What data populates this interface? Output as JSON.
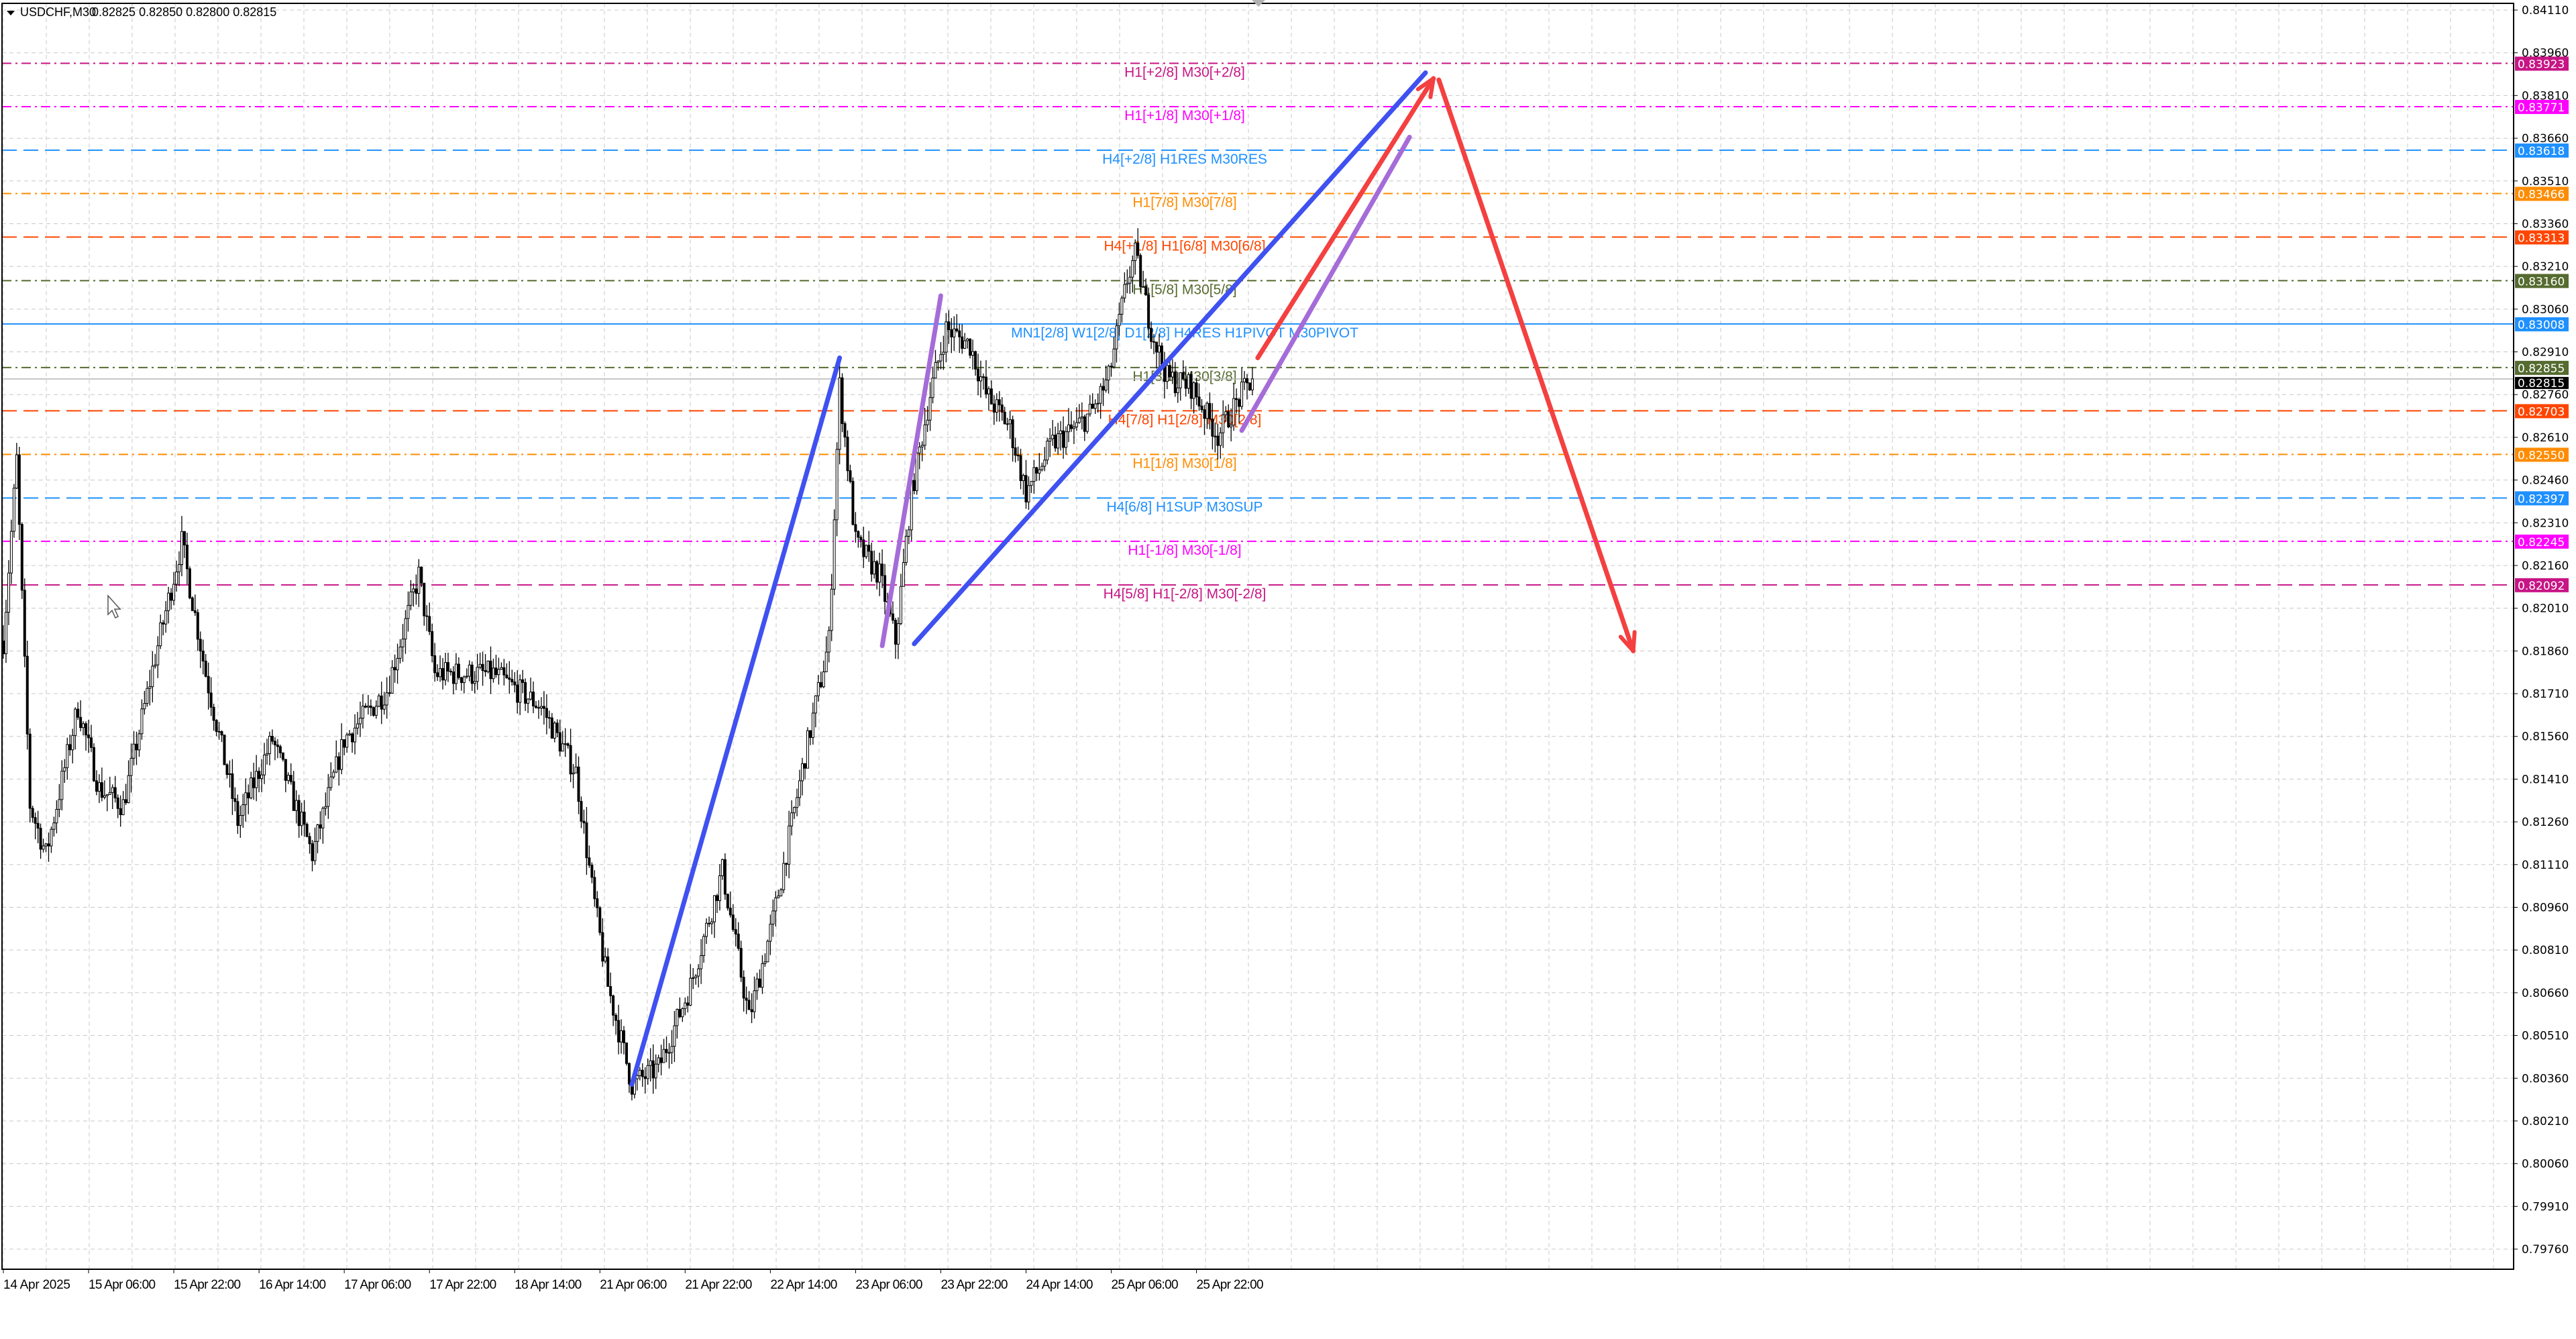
{
  "header": {
    "symbol": "USDCHF,M30",
    "ohlc": "0.82825 0.82850 0.82800 0.82815"
  },
  "chart_data": {
    "type": "candlestick",
    "symbol": "USDCHF",
    "timeframe": "M30",
    "grid": true,
    "ylim": [
      0.7976,
      0.8411
    ],
    "y_ticks": [
      "0.84110",
      "0.83960",
      "0.83810",
      "0.83660",
      "0.83510",
      "0.83360",
      "0.83210",
      "0.83060",
      "0.82910",
      "0.82760",
      "0.82610",
      "0.82460",
      "0.82310",
      "0.82160",
      "0.82010",
      "0.81860",
      "0.81710",
      "0.81560",
      "0.81410",
      "0.81260",
      "0.81110",
      "0.80960",
      "0.80810",
      "0.80660",
      "0.80510",
      "0.80360",
      "0.80210",
      "0.80060",
      "0.79910",
      "0.79760"
    ],
    "x_ticks": [
      "14 Apr 2025",
      "15 Apr 06:00",
      "15 Apr 22:00",
      "16 Apr 14:00",
      "17 Apr 06:00",
      "17 Apr 22:00",
      "18 Apr 14:00",
      "21 Apr 06:00",
      "21 Apr 22:00",
      "22 Apr 14:00",
      "23 Apr 06:00",
      "23 Apr 22:00",
      "24 Apr 14:00",
      "25 Apr 06:00",
      "25 Apr 22:00"
    ],
    "bars_per_x_tick": 32,
    "current_price": {
      "value": 0.82815,
      "label": "0.82815",
      "color": "#000000"
    },
    "close_path": [
      [
        0,
        0.81895
      ],
      [
        5,
        0.8253
      ],
      [
        10,
        0.81319
      ],
      [
        16,
        0.81146
      ],
      [
        28,
        0.81665
      ],
      [
        36,
        0.81376
      ],
      [
        45,
        0.81319
      ],
      [
        57,
        0.81838
      ],
      [
        67,
        0.82242
      ],
      [
        76,
        0.8178
      ],
      [
        88,
        0.81261
      ],
      [
        101,
        0.81549
      ],
      [
        116,
        0.81146
      ],
      [
        128,
        0.81549
      ],
      [
        144,
        0.81722
      ],
      [
        156,
        0.82126
      ],
      [
        162,
        0.8178
      ],
      [
        184,
        0.8178
      ],
      [
        202,
        0.81665
      ],
      [
        215,
        0.81434
      ],
      [
        221,
        0.8103
      ],
      [
        227,
        0.80684
      ],
      [
        236,
        0.80338
      ],
      [
        246,
        0.80396
      ],
      [
        258,
        0.80684
      ],
      [
        270,
        0.81088
      ],
      [
        280,
        0.80569
      ],
      [
        289,
        0.80915
      ],
      [
        301,
        0.81492
      ],
      [
        310,
        0.81895
      ],
      [
        314,
        0.8279
      ],
      [
        320,
        0.82242
      ],
      [
        329,
        0.82126
      ],
      [
        335,
        0.81895
      ],
      [
        341,
        0.82415
      ],
      [
        348,
        0.82761
      ],
      [
        354,
        0.82991
      ],
      [
        363,
        0.82934
      ],
      [
        369,
        0.82761
      ],
      [
        378,
        0.82645
      ],
      [
        384,
        0.82415
      ],
      [
        394,
        0.82588
      ],
      [
        403,
        0.82645
      ],
      [
        409,
        0.82703
      ],
      [
        415,
        0.82818
      ],
      [
        422,
        0.83164
      ],
      [
        425,
        0.83251
      ],
      [
        431,
        0.82991
      ],
      [
        437,
        0.82818
      ],
      [
        446,
        0.8279
      ],
      [
        456,
        0.82617
      ],
      [
        465,
        0.82761
      ],
      [
        469,
        0.82815
      ]
    ],
    "levels": [
      {
        "price": 0.83923,
        "label": "0.83923",
        "text": "H1[+2/8] M30[+2/8]",
        "color": "#c71585",
        "style": "dashdot"
      },
      {
        "price": 0.83771,
        "label": "0.83771",
        "text": "H1[+1/8] M30[+1/8]",
        "color": "#ff00ff",
        "style": "dashdot"
      },
      {
        "price": 0.83618,
        "label": "0.83618",
        "text": "H4[+2/8] H1RES M30RES",
        "color": "#1e90ff",
        "style": "dashed"
      },
      {
        "price": 0.83466,
        "label": "0.83466",
        "text": "H1[7/8] M30[7/8]",
        "color": "#ff8c00",
        "style": "dashdot"
      },
      {
        "price": 0.83313,
        "label": "0.83313",
        "text": "H4[+1/8] H1[6/8] M30[6/8]",
        "color": "#ff4500",
        "style": "dashed"
      },
      {
        "price": 0.8316,
        "label": "0.83160",
        "text": "H1[5/8] M30[5/8]",
        "color": "#556b2f",
        "style": "dashdot"
      },
      {
        "price": 0.83008,
        "label": "0.83008",
        "text": "MN1[2/8] W1[2/8] D1[2/8] H4RES H1PIVOT M30PIVOT",
        "color": "#1e90ff",
        "style": "solid"
      },
      {
        "price": 0.82855,
        "label": "0.82855",
        "text": "H1[3/8] M30[3/8]",
        "color": "#556b2f",
        "style": "dashdot"
      },
      {
        "price": 0.82703,
        "label": "0.82703",
        "text": "H4[7/8] H1[2/8] M30[2/8]",
        "color": "#ff4500",
        "style": "dashed"
      },
      {
        "price": 0.8255,
        "label": "0.82550",
        "text": "H1[1/8] M30[1/8]",
        "color": "#ff8c00",
        "style": "dashdot"
      },
      {
        "price": 0.82397,
        "label": "0.82397",
        "text": "H4[6/8] H1SUP M30SUP",
        "color": "#1e90ff",
        "style": "dashed"
      },
      {
        "price": 0.82245,
        "label": "0.82245",
        "text": "H1[-1/8] M30[-1/8]",
        "color": "#ff00ff",
        "style": "dashdot"
      },
      {
        "price": 0.82092,
        "label": "0.82092",
        "text": "H4[5/8] H1[-2/8] M30[-2/8]",
        "color": "#c71585",
        "style": "dashed"
      }
    ],
    "drawings": [
      {
        "kind": "trendline",
        "color": "#3f51f0",
        "from": [
          236,
          0.80338
        ],
        "to": [
          314,
          0.82889
        ]
      },
      {
        "kind": "trendline",
        "color": "#a56cd8",
        "from": [
          330,
          0.81878
        ],
        "to": [
          352,
          0.83107
        ]
      },
      {
        "kind": "trendline",
        "color": "#3f51f0",
        "from": [
          342,
          0.81885
        ],
        "to": [
          534,
          0.8389
        ]
      },
      {
        "kind": "arrow",
        "color": "#f44040",
        "from": [
          471,
          0.82889
        ],
        "to": [
          537,
          0.8387
        ]
      },
      {
        "kind": "trendline",
        "color": "#a56cd8",
        "from": [
          465,
          0.82634
        ],
        "to": [
          528,
          0.83664
        ]
      },
      {
        "kind": "arrow",
        "color": "#f44040",
        "from": [
          539,
          0.83865
        ],
        "to": [
          612,
          0.8186
        ]
      }
    ]
  }
}
